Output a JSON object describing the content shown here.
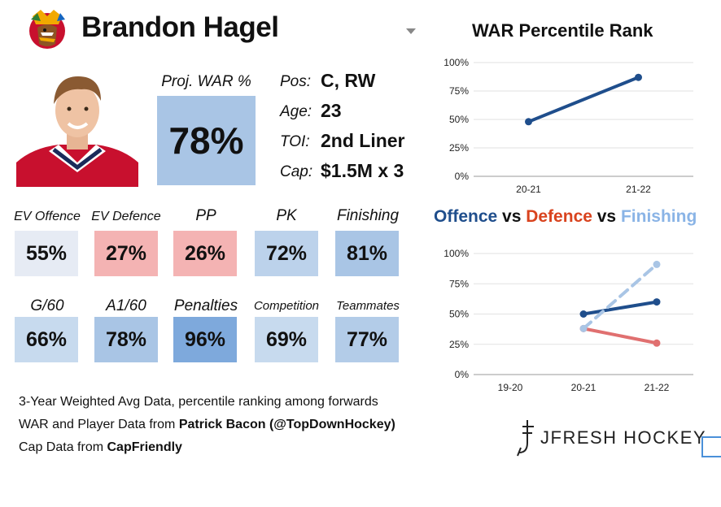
{
  "header": {
    "player_name": "Brandon Hagel",
    "team_logo_icon": "chicago-blackhawks-logo-icon",
    "dropdown_icon": "chevron-down-icon"
  },
  "proj_war": {
    "label": "Proj. WAR %",
    "value": "78%",
    "color": "#a9c5e5"
  },
  "info": [
    {
      "label": "Pos:",
      "value": "C, RW"
    },
    {
      "label": "Age:",
      "value": "23"
    },
    {
      "label": "TOI:",
      "value": "2nd Liner"
    },
    {
      "label": "Cap:",
      "value": "$1.5M x 3"
    }
  ],
  "stats": [
    {
      "label": "EV Offence",
      "value": "55%",
      "color": "#e6ebf4"
    },
    {
      "label": "EV Defence",
      "value": "27%",
      "color": "#f4b3b3"
    },
    {
      "label": "PP",
      "value": "26%",
      "color": "#f4b3b3"
    },
    {
      "label": "PK",
      "value": "72%",
      "color": "#bcd2eb"
    },
    {
      "label": "Finishing",
      "value": "81%",
      "color": "#a9c5e5"
    },
    {
      "label": "G/60",
      "value": "66%",
      "color": "#c7daee"
    },
    {
      "label": "A1/60",
      "value": "78%",
      "color": "#a9c5e5"
    },
    {
      "label": "Penalties",
      "value": "96%",
      "color": "#7ea9dc"
    },
    {
      "label": "Competition",
      "value": "69%",
      "color": "#c7daee"
    },
    {
      "label": "Teammates",
      "value": "77%",
      "color": "#b3cce8"
    }
  ],
  "footer": {
    "line1": "3-Year Weighted Avg Data, percentile ranking among forwards",
    "line2_prefix": "WAR and Player Data from ",
    "line2_bold": "Patrick Bacon (@TopDownHockey)",
    "line3_prefix": "Cap Data from ",
    "line3_bold": "CapFriendly"
  },
  "brand": {
    "name": "JFRESH HOCKEY",
    "icon": "jfresh-logo-icon"
  },
  "chart_data": [
    {
      "type": "line",
      "title": "WAR Percentile Rank",
      "categories": [
        "20-21",
        "21-22"
      ],
      "series": [
        {
          "values": [
            48,
            87
          ],
          "color": "#1f4e8c"
        }
      ],
      "ylim": [
        0,
        100
      ],
      "yticks": [
        "0%",
        "25%",
        "50%",
        "75%",
        "100%"
      ],
      "grid": true
    },
    {
      "type": "line",
      "title_parts": [
        {
          "text": "Offence",
          "color": "#1f4e8c"
        },
        {
          "text": " vs ",
          "color": "#111111"
        },
        {
          "text": "Defence",
          "color": "#d9431e"
        },
        {
          "text": " vs ",
          "color": "#111111"
        },
        {
          "text": "Finishing",
          "color": "#8ab4e6"
        }
      ],
      "categories": [
        "19-20",
        "20-21",
        "21-22"
      ],
      "series": [
        {
          "name": "Offence",
          "values": [
            null,
            50,
            60
          ],
          "color": "#1f4e8c",
          "dash": false
        },
        {
          "name": "Defence",
          "values": [
            null,
            38,
            26
          ],
          "color": "#e07070",
          "dash": false
        },
        {
          "name": "Finishing",
          "values": [
            null,
            38,
            91
          ],
          "color": "#a9c5e5",
          "dash": true
        }
      ],
      "ylim": [
        0,
        100
      ],
      "yticks": [
        "0%",
        "25%",
        "50%",
        "75%",
        "100%"
      ],
      "grid": true
    }
  ]
}
